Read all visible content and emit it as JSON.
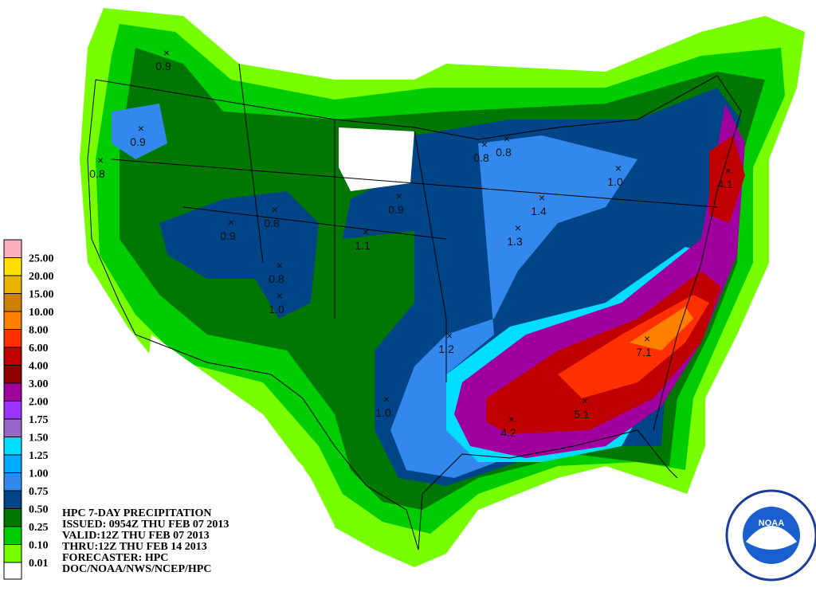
{
  "legend": {
    "items": [
      {
        "label": "25.00",
        "color": "#ffb0c0"
      },
      {
        "label": "20.00",
        "color": "#ffe000"
      },
      {
        "label": "15.00",
        "color": "#e8b400"
      },
      {
        "label": "10.00",
        "color": "#d08000"
      },
      {
        "label": "8.00",
        "color": "#ff8000"
      },
      {
        "label": "6.00",
        "color": "#ff3000"
      },
      {
        "label": "4.00",
        "color": "#c00000"
      },
      {
        "label": "3.00",
        "color": "#8c0000"
      },
      {
        "label": "2.00",
        "color": "#a000a0"
      },
      {
        "label": "1.75",
        "color": "#9933ff"
      },
      {
        "label": "1.50",
        "color": "#9966cc"
      },
      {
        "label": "1.25",
        "color": "#00ddff"
      },
      {
        "label": "1.00",
        "color": "#00aaff"
      },
      {
        "label": "0.75",
        "color": "#3388ee"
      },
      {
        "label": "0.50",
        "color": "#004488"
      },
      {
        "label": "0.25",
        "color": "#007700"
      },
      {
        "label": "0.10",
        "color": "#00cc00"
      },
      {
        "label": "0.01",
        "color": "#77ff00"
      }
    ]
  },
  "info": {
    "lines": [
      "HPC 7-DAY PRECIPITATION",
      "ISSUED: 0954Z THU FEB 07 2013",
      "VALID:12Z THU FEB 07 2013",
      "THRU:12Z THU FEB 14 2013",
      "FORECASTER: HPC",
      "DOC/NOAA/NWS/NCEP/HPC"
    ]
  },
  "maxima": [
    "0.9",
    "0.9",
    "0.8",
    "0.8",
    "0.9",
    "0.9",
    "1.1",
    "0.8",
    "1.0",
    "1.2",
    "1.0",
    "4.2",
    "5.1",
    "7.1",
    "1.3",
    "1.4",
    "0.8",
    "0.8",
    "1.0",
    "4.1"
  ],
  "logo": {
    "text": "NOAA"
  }
}
